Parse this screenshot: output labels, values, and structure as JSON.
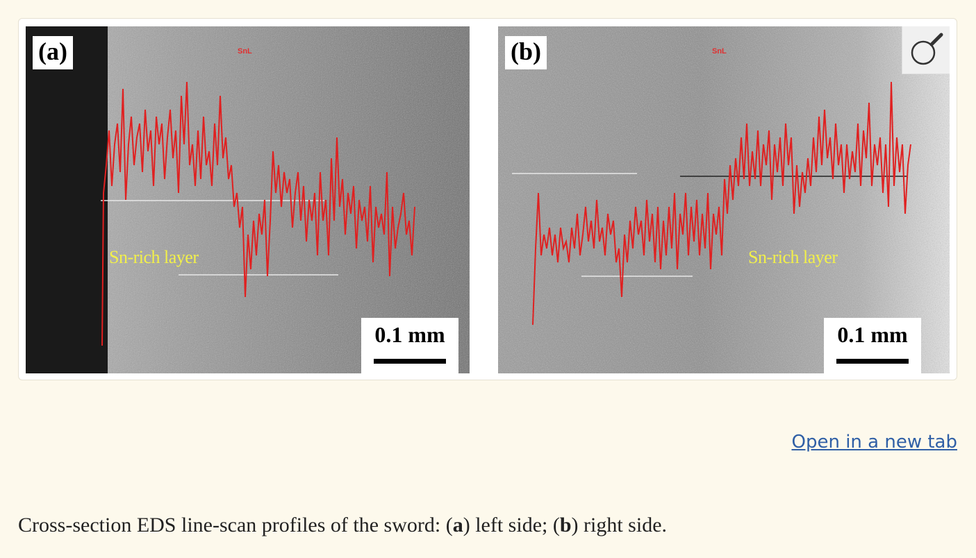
{
  "figure": {
    "panel_a": {
      "label": "(a)",
      "element_tag": "SnL",
      "layer_label": "Sn-rich layer",
      "scale": "0.1 mm"
    },
    "panel_b": {
      "label": "(b)",
      "element_tag": "SnL",
      "layer_label": "Sn-rich layer",
      "scale": "0.1 mm"
    },
    "magnifier_icon": "magnifier-icon"
  },
  "link": {
    "open_new_tab": "Open in a new tab"
  },
  "caption": {
    "prefix": "Cross-section EDS line-scan profiles of the sword: (",
    "a_key": "a",
    "mid1": ") left side; (",
    "b_key": "b",
    "suffix": ") right side."
  },
  "colors": {
    "line_trace": "#e02020",
    "layer_text": "#f2f04a",
    "link": "#2f5fa6",
    "background": "#fdf9ec"
  }
}
